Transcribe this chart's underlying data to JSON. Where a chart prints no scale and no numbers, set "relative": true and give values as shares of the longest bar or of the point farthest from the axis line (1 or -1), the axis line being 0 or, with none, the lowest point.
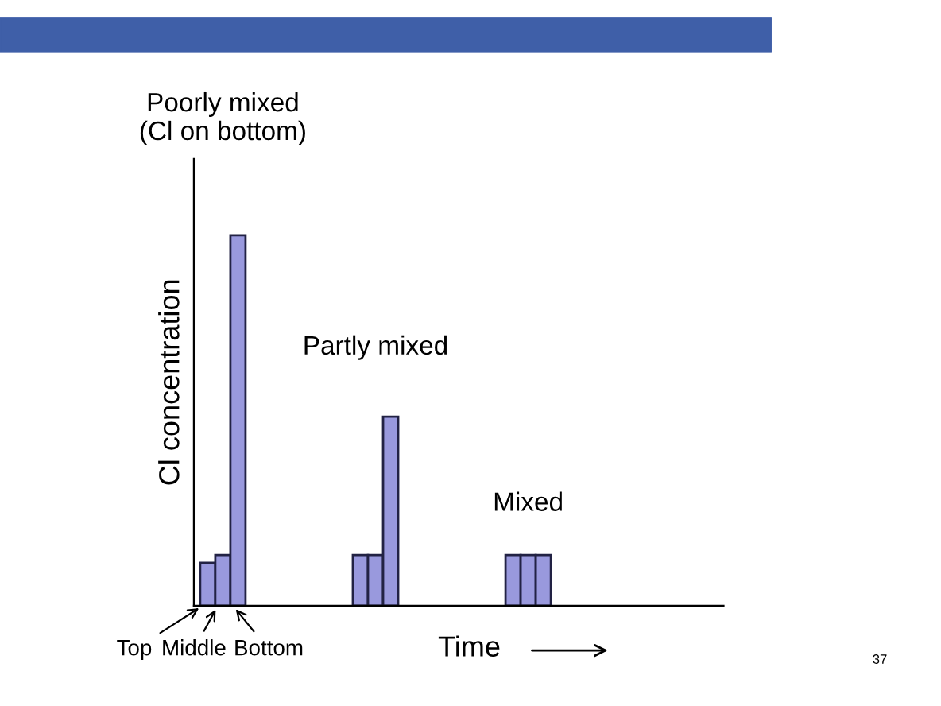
{
  "chart_data": {
    "type": "bar",
    "relative": true,
    "categories": [
      null,
      null,
      null
    ],
    "series": [
      {
        "name": "Top",
        "color": "#9999dd",
        "values": [
          0.116,
          0.137,
          0.137
        ]
      },
      {
        "name": "Middle",
        "color": "#9999dd",
        "values": [
          0.137,
          0.137,
          0.137
        ]
      },
      {
        "name": "Bottom",
        "color": "#9999dd",
        "values": [
          1,
          0.51,
          0.137
        ]
      }
    ],
    "xlabel": "Time",
    "ylabel": "Cl concentration",
    "annotations": [
      "Poorly mixed\n(Cl on bottom)",
      "Partly mixed",
      "Mixed",
      "37"
    ],
    "grid": false
  }
}
